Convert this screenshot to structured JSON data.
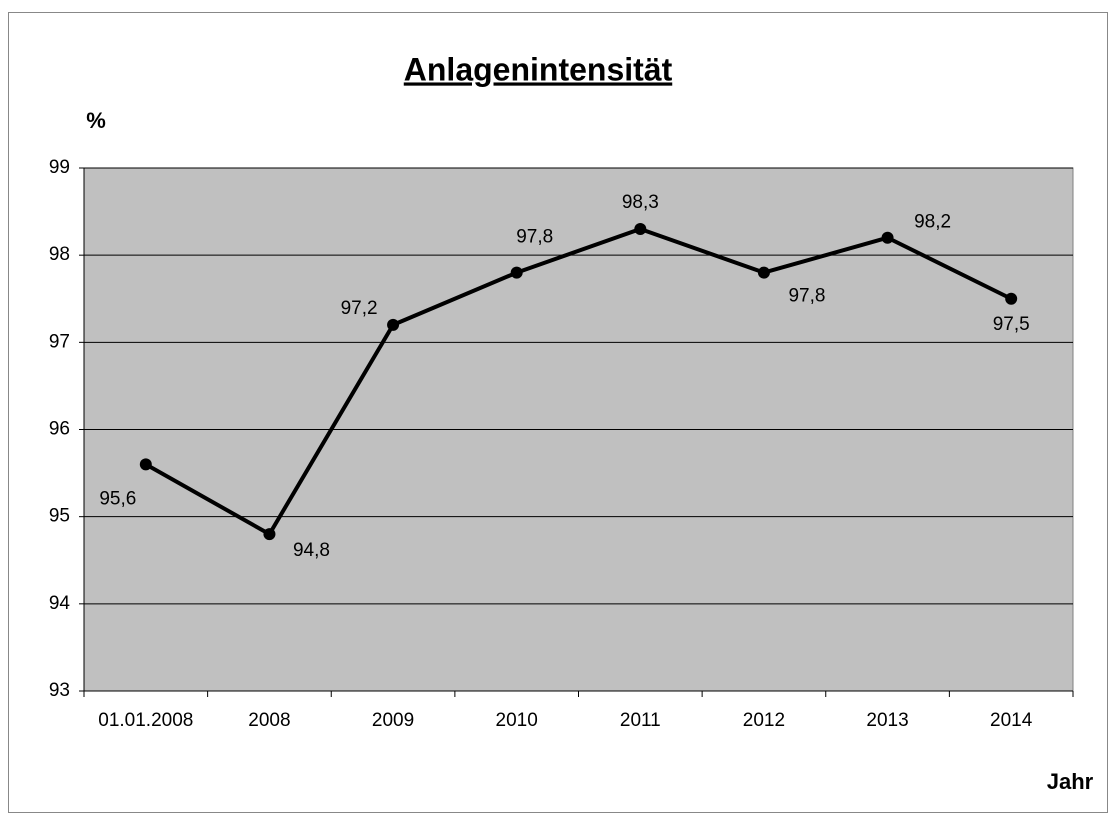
{
  "chart_data": {
    "type": "line",
    "title": "Anlagenintensität",
    "y_label": "%",
    "x_label": "Jahr",
    "categories": [
      "01.01.2008",
      "2008",
      "2009",
      "2010",
      "2011",
      "2012",
      "2013",
      "2014"
    ],
    "values": [
      95.6,
      94.8,
      97.2,
      97.8,
      98.3,
      97.8,
      98.2,
      97.5
    ],
    "value_labels": [
      "95,6",
      "94,8",
      "97,2",
      "97,8",
      "98,3",
      "97,8",
      "98,2",
      "97,5"
    ],
    "color": "#000000",
    "plot_background": "#c0c0c0",
    "ylim": [
      93,
      99
    ],
    "yticks": [
      93,
      94,
      95,
      96,
      97,
      98,
      99
    ],
    "grid": true
  }
}
